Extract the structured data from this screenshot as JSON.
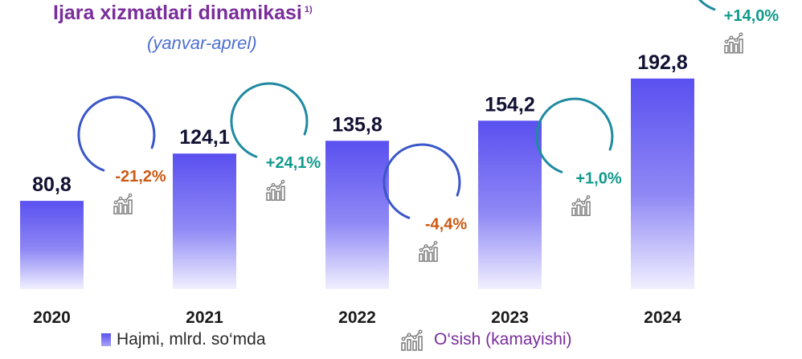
{
  "title": "Ijara xizmatlari dinamikasi",
  "title_note": "1)",
  "subtitle": "(yanvar-aprel)",
  "legend": {
    "volume": "Hajmi, mlrd. so‘mda",
    "growth": "O‘sish (kamayishi)"
  },
  "colors": {
    "title": "#7a2e9c",
    "subtitle": "#4d6fd1",
    "bar_top": "#5a50f0",
    "bar_bottom": "#f1f0ff",
    "growth_positive": "#0f9a8c",
    "growth_negative": "#cc5a14",
    "arc_positive": "#1f8aa0",
    "arc_negative": "#3b56c8"
  },
  "chart_data": {
    "type": "bar",
    "categories": [
      "2020",
      "2021",
      "2022",
      "2023",
      "2024"
    ],
    "series": [
      {
        "name": "Hajmi, mlrd. so‘mda",
        "values": [
          80.8,
          124.1,
          135.8,
          154.2,
          192.8
        ]
      }
    ],
    "value_labels": [
      "80,8",
      "124,1",
      "135,8",
      "154,2",
      "192,8"
    ],
    "growth": {
      "name": "O‘sish (kamayishi)",
      "values": [
        -21.2,
        24.1,
        -4.4,
        1.0,
        14.0
      ],
      "labels": [
        "-21,2%",
        "+24,1%",
        "-4,4%",
        "+1,0%",
        "+14,0%"
      ]
    },
    "ylim": [
      0,
      200
    ],
    "grid": false,
    "legend_position": "bottom"
  }
}
